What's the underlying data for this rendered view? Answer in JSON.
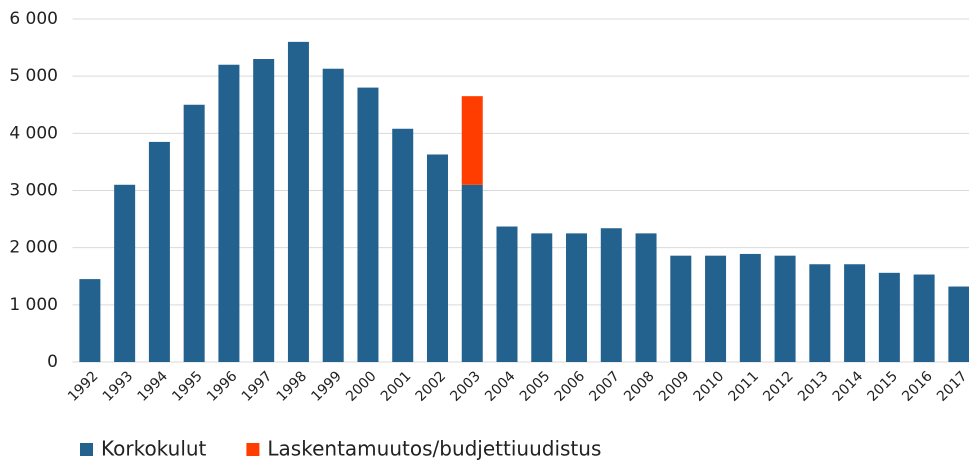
{
  "chart_data": {
    "type": "bar",
    "stacked": true,
    "categories": [
      "1992",
      "1993",
      "1994",
      "1995",
      "1996",
      "1997",
      "1998",
      "1999",
      "2000",
      "2001",
      "2002",
      "2003",
      "2004",
      "2005",
      "2006",
      "2007",
      "2008",
      "2009",
      "2010",
      "2011",
      "2012",
      "2013",
      "2014",
      "2015",
      "2016",
      "2017"
    ],
    "series": [
      {
        "name": "Korkokulut",
        "color": "#23618f",
        "values": [
          1450,
          3100,
          3850,
          4500,
          5200,
          5300,
          5600,
          5130,
          4800,
          4080,
          3630,
          3100,
          2370,
          2250,
          2250,
          2340,
          2250,
          1860,
          1860,
          1890,
          1860,
          1710,
          1710,
          1560,
          1530,
          1320
        ]
      },
      {
        "name": "Laskentamuutos/budjettiuudistus",
        "color": "#ff3d00",
        "values": [
          null,
          null,
          null,
          null,
          null,
          null,
          null,
          null,
          null,
          null,
          null,
          1550,
          null,
          null,
          null,
          null,
          null,
          null,
          null,
          null,
          null,
          null,
          null,
          null,
          null,
          null
        ]
      }
    ],
    "ylim": [
      0,
      6000
    ],
    "yticks": [
      0,
      {
        "value": 1000,
        "label": "1 000"
      },
      {
        "value": 2000,
        "label": "2 000"
      },
      {
        "value": 3000,
        "label": "3 000"
      },
      {
        "value": 4000,
        "label": "4 000"
      },
      {
        "value": 5000,
        "label": "5 000"
      },
      {
        "value": 6000,
        "label": "6 000"
      }
    ],
    "grid": true,
    "legend": "bottom"
  }
}
